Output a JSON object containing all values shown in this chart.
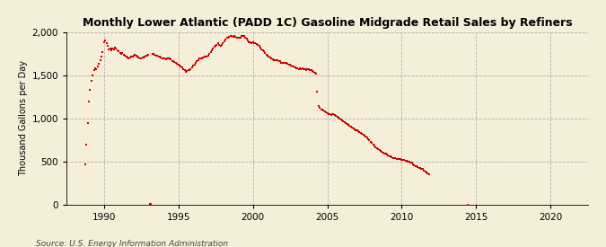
{
  "title": "Monthly Lower Atlantic (PADD 1C) Gasoline Midgrade Retail Sales by Refiners",
  "ylabel": "Thousand Gallons per Day",
  "source": "Source: U.S. Energy Information Administration",
  "background_color": "#f5eed9",
  "dot_color": "#cc0000",
  "dot_size": 3.5,
  "xlim": [
    1987.5,
    2022.5
  ],
  "ylim": [
    0,
    2000
  ],
  "yticks": [
    0,
    500,
    1000,
    1500,
    2000
  ],
  "xticks": [
    1990,
    1995,
    2000,
    2005,
    2010,
    2015,
    2020
  ],
  "data": [
    [
      1988.75,
      470
    ],
    [
      1988.83,
      700
    ],
    [
      1988.92,
      950
    ],
    [
      1989.0,
      1200
    ],
    [
      1989.08,
      1330
    ],
    [
      1989.17,
      1440
    ],
    [
      1989.25,
      1500
    ],
    [
      1989.33,
      1560
    ],
    [
      1989.42,
      1580
    ],
    [
      1989.5,
      1570
    ],
    [
      1989.58,
      1600
    ],
    [
      1989.67,
      1630
    ],
    [
      1989.75,
      1680
    ],
    [
      1989.83,
      1720
    ],
    [
      1989.92,
      1770
    ],
    [
      1990.0,
      1880
    ],
    [
      1990.08,
      1900
    ],
    [
      1990.17,
      1870
    ],
    [
      1990.25,
      1840
    ],
    [
      1990.33,
      1800
    ],
    [
      1990.42,
      1810
    ],
    [
      1990.5,
      1790
    ],
    [
      1990.58,
      1810
    ],
    [
      1990.67,
      1800
    ],
    [
      1990.75,
      1820
    ],
    [
      1990.83,
      1810
    ],
    [
      1990.92,
      1790
    ],
    [
      1991.0,
      1780
    ],
    [
      1991.08,
      1760
    ],
    [
      1991.17,
      1750
    ],
    [
      1991.25,
      1760
    ],
    [
      1991.33,
      1740
    ],
    [
      1991.42,
      1730
    ],
    [
      1991.5,
      1720
    ],
    [
      1991.58,
      1710
    ],
    [
      1991.67,
      1700
    ],
    [
      1991.75,
      1710
    ],
    [
      1991.83,
      1720
    ],
    [
      1991.92,
      1720
    ],
    [
      1992.0,
      1730
    ],
    [
      1992.08,
      1740
    ],
    [
      1992.17,
      1730
    ],
    [
      1992.25,
      1720
    ],
    [
      1992.33,
      1710
    ],
    [
      1992.42,
      1700
    ],
    [
      1992.5,
      1700
    ],
    [
      1992.58,
      1710
    ],
    [
      1992.67,
      1710
    ],
    [
      1992.75,
      1720
    ],
    [
      1992.83,
      1730
    ],
    [
      1992.92,
      1730
    ],
    [
      1993.0,
      1740
    ],
    [
      1993.08,
      10
    ],
    [
      1993.17,
      10
    ],
    [
      1993.25,
      1750
    ],
    [
      1993.33,
      1750
    ],
    [
      1993.42,
      1740
    ],
    [
      1993.5,
      1730
    ],
    [
      1993.58,
      1730
    ],
    [
      1993.67,
      1720
    ],
    [
      1993.75,
      1720
    ],
    [
      1993.83,
      1710
    ],
    [
      1993.92,
      1700
    ],
    [
      1994.0,
      1700
    ],
    [
      1994.08,
      1700
    ],
    [
      1994.17,
      1690
    ],
    [
      1994.25,
      1700
    ],
    [
      1994.33,
      1700
    ],
    [
      1994.42,
      1700
    ],
    [
      1994.5,
      1690
    ],
    [
      1994.58,
      1660
    ],
    [
      1994.67,
      1660
    ],
    [
      1994.75,
      1650
    ],
    [
      1994.83,
      1640
    ],
    [
      1994.92,
      1630
    ],
    [
      1995.0,
      1620
    ],
    [
      1995.08,
      1610
    ],
    [
      1995.17,
      1600
    ],
    [
      1995.25,
      1590
    ],
    [
      1995.33,
      1570
    ],
    [
      1995.42,
      1560
    ],
    [
      1995.5,
      1540
    ],
    [
      1995.58,
      1550
    ],
    [
      1995.67,
      1560
    ],
    [
      1995.75,
      1560
    ],
    [
      1995.83,
      1570
    ],
    [
      1995.92,
      1590
    ],
    [
      1996.0,
      1610
    ],
    [
      1996.08,
      1620
    ],
    [
      1996.17,
      1640
    ],
    [
      1996.25,
      1660
    ],
    [
      1996.33,
      1680
    ],
    [
      1996.42,
      1700
    ],
    [
      1996.5,
      1700
    ],
    [
      1996.58,
      1700
    ],
    [
      1996.67,
      1710
    ],
    [
      1996.75,
      1720
    ],
    [
      1996.83,
      1720
    ],
    [
      1996.92,
      1720
    ],
    [
      1997.0,
      1730
    ],
    [
      1997.08,
      1750
    ],
    [
      1997.17,
      1770
    ],
    [
      1997.25,
      1790
    ],
    [
      1997.33,
      1810
    ],
    [
      1997.42,
      1830
    ],
    [
      1997.5,
      1840
    ],
    [
      1997.58,
      1850
    ],
    [
      1997.67,
      1870
    ],
    [
      1997.75,
      1850
    ],
    [
      1997.83,
      1840
    ],
    [
      1997.92,
      1850
    ],
    [
      1998.0,
      1870
    ],
    [
      1998.08,
      1890
    ],
    [
      1998.17,
      1910
    ],
    [
      1998.25,
      1930
    ],
    [
      1998.33,
      1940
    ],
    [
      1998.42,
      1950
    ],
    [
      1998.5,
      1960
    ],
    [
      1998.58,
      1960
    ],
    [
      1998.67,
      1950
    ],
    [
      1998.75,
      1960
    ],
    [
      1998.83,
      1950
    ],
    [
      1998.92,
      1940
    ],
    [
      1999.0,
      1940
    ],
    [
      1999.08,
      1940
    ],
    [
      1999.17,
      1940
    ],
    [
      1999.25,
      1960
    ],
    [
      1999.33,
      1960
    ],
    [
      1999.42,
      1960
    ],
    [
      1999.5,
      1930
    ],
    [
      1999.58,
      1920
    ],
    [
      1999.67,
      1900
    ],
    [
      1999.75,
      1880
    ],
    [
      1999.83,
      1880
    ],
    [
      1999.92,
      1870
    ],
    [
      2000.0,
      1880
    ],
    [
      2000.08,
      1870
    ],
    [
      2000.17,
      1870
    ],
    [
      2000.25,
      1860
    ],
    [
      2000.33,
      1850
    ],
    [
      2000.42,
      1840
    ],
    [
      2000.5,
      1820
    ],
    [
      2000.58,
      1800
    ],
    [
      2000.67,
      1790
    ],
    [
      2000.75,
      1780
    ],
    [
      2000.83,
      1760
    ],
    [
      2000.92,
      1740
    ],
    [
      2001.0,
      1730
    ],
    [
      2001.08,
      1720
    ],
    [
      2001.17,
      1710
    ],
    [
      2001.25,
      1700
    ],
    [
      2001.33,
      1690
    ],
    [
      2001.42,
      1680
    ],
    [
      2001.5,
      1680
    ],
    [
      2001.58,
      1680
    ],
    [
      2001.67,
      1680
    ],
    [
      2001.75,
      1670
    ],
    [
      2001.83,
      1660
    ],
    [
      2001.92,
      1640
    ],
    [
      2002.0,
      1640
    ],
    [
      2002.08,
      1640
    ],
    [
      2002.17,
      1640
    ],
    [
      2002.25,
      1640
    ],
    [
      2002.33,
      1630
    ],
    [
      2002.42,
      1620
    ],
    [
      2002.5,
      1620
    ],
    [
      2002.58,
      1610
    ],
    [
      2002.67,
      1600
    ],
    [
      2002.75,
      1600
    ],
    [
      2002.83,
      1590
    ],
    [
      2002.92,
      1580
    ],
    [
      2003.0,
      1580
    ],
    [
      2003.08,
      1570
    ],
    [
      2003.17,
      1580
    ],
    [
      2003.25,
      1570
    ],
    [
      2003.33,
      1580
    ],
    [
      2003.42,
      1570
    ],
    [
      2003.5,
      1570
    ],
    [
      2003.58,
      1560
    ],
    [
      2003.67,
      1570
    ],
    [
      2003.75,
      1570
    ],
    [
      2003.83,
      1560
    ],
    [
      2003.92,
      1560
    ],
    [
      2004.0,
      1550
    ],
    [
      2004.08,
      1540
    ],
    [
      2004.17,
      1530
    ],
    [
      2004.25,
      1520
    ],
    [
      2004.33,
      1310
    ],
    [
      2004.42,
      1150
    ],
    [
      2004.5,
      1120
    ],
    [
      2004.58,
      1100
    ],
    [
      2004.67,
      1100
    ],
    [
      2004.75,
      1090
    ],
    [
      2004.83,
      1080
    ],
    [
      2004.92,
      1070
    ],
    [
      2005.0,
      1060
    ],
    [
      2005.08,
      1050
    ],
    [
      2005.17,
      1050
    ],
    [
      2005.25,
      1040
    ],
    [
      2005.33,
      1050
    ],
    [
      2005.42,
      1050
    ],
    [
      2005.5,
      1040
    ],
    [
      2005.58,
      1030
    ],
    [
      2005.67,
      1020
    ],
    [
      2005.75,
      1010
    ],
    [
      2005.83,
      1000
    ],
    [
      2005.92,
      990
    ],
    [
      2006.0,
      980
    ],
    [
      2006.08,
      970
    ],
    [
      2006.17,
      960
    ],
    [
      2006.25,
      950
    ],
    [
      2006.33,
      940
    ],
    [
      2006.42,
      930
    ],
    [
      2006.5,
      920
    ],
    [
      2006.58,
      910
    ],
    [
      2006.67,
      900
    ],
    [
      2006.75,
      890
    ],
    [
      2006.83,
      880
    ],
    [
      2006.92,
      870
    ],
    [
      2007.0,
      860
    ],
    [
      2007.08,
      850
    ],
    [
      2007.17,
      840
    ],
    [
      2007.25,
      830
    ],
    [
      2007.33,
      820
    ],
    [
      2007.42,
      810
    ],
    [
      2007.5,
      800
    ],
    [
      2007.58,
      790
    ],
    [
      2007.67,
      780
    ],
    [
      2007.75,
      760
    ],
    [
      2007.83,
      750
    ],
    [
      2007.92,
      730
    ],
    [
      2008.0,
      720
    ],
    [
      2008.08,
      700
    ],
    [
      2008.17,
      690
    ],
    [
      2008.25,
      670
    ],
    [
      2008.33,
      660
    ],
    [
      2008.42,
      650
    ],
    [
      2008.5,
      640
    ],
    [
      2008.58,
      630
    ],
    [
      2008.67,
      620
    ],
    [
      2008.75,
      610
    ],
    [
      2008.83,
      600
    ],
    [
      2008.92,
      590
    ],
    [
      2009.0,
      580
    ],
    [
      2009.08,
      570
    ],
    [
      2009.17,
      560
    ],
    [
      2009.25,
      560
    ],
    [
      2009.33,
      550
    ],
    [
      2009.42,
      540
    ],
    [
      2009.5,
      540
    ],
    [
      2009.58,
      540
    ],
    [
      2009.67,
      530
    ],
    [
      2009.75,
      530
    ],
    [
      2009.83,
      530
    ],
    [
      2009.92,
      530
    ],
    [
      2010.0,
      520
    ],
    [
      2010.08,
      520
    ],
    [
      2010.17,
      520
    ],
    [
      2010.25,
      510
    ],
    [
      2010.33,
      510
    ],
    [
      2010.42,
      500
    ],
    [
      2010.5,
      500
    ],
    [
      2010.58,
      490
    ],
    [
      2010.67,
      490
    ],
    [
      2010.75,
      470
    ],
    [
      2010.83,
      460
    ],
    [
      2010.92,
      450
    ],
    [
      2011.0,
      450
    ],
    [
      2011.08,
      440
    ],
    [
      2011.17,
      430
    ],
    [
      2011.25,
      430
    ],
    [
      2011.33,
      420
    ],
    [
      2011.42,
      420
    ],
    [
      2011.5,
      400
    ],
    [
      2011.58,
      390
    ],
    [
      2011.67,
      380
    ],
    [
      2011.75,
      370
    ],
    [
      2011.83,
      360
    ],
    [
      2014.42,
      5
    ]
  ]
}
